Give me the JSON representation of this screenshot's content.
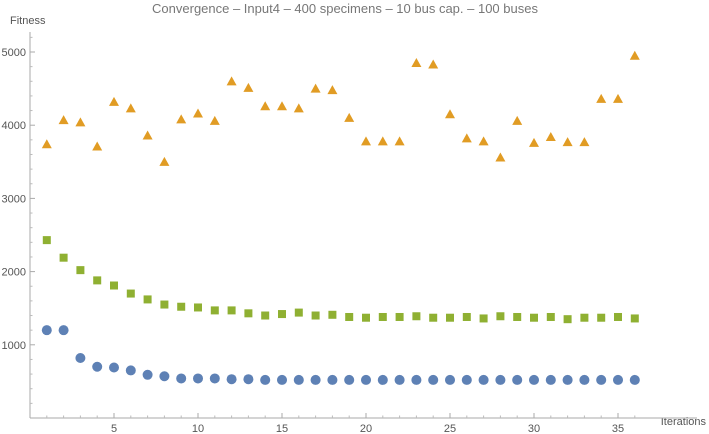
{
  "chart_data": {
    "type": "scatter",
    "title": "Convergence – Input4 – 400 specimens – 10 bus cap. – 100 buses",
    "xlabel": "Iterations",
    "ylabel": "Fitness",
    "xlim": [
      0,
      37
    ],
    "ylim": [
      0,
      5250
    ],
    "xticks": [
      5,
      10,
      15,
      20,
      25,
      30,
      35
    ],
    "xtick_labels": [
      "5",
      "10",
      "15",
      "20",
      "25",
      "30",
      "35"
    ],
    "yticks": [
      1000,
      2000,
      3000,
      4000,
      5000
    ],
    "ytick_labels": [
      "1000",
      "2000",
      "3000",
      "4000",
      "5000"
    ],
    "grid": false,
    "legend": "none",
    "x": [
      1,
      2,
      3,
      4,
      5,
      6,
      7,
      8,
      9,
      10,
      11,
      12,
      13,
      14,
      15,
      16,
      17,
      18,
      19,
      20,
      21,
      22,
      23,
      24,
      25,
      26,
      27,
      28,
      29,
      30,
      31,
      32,
      33,
      34,
      35,
      36
    ],
    "series": [
      {
        "marker": "triangle",
        "color": "#E19C24",
        "values": [
          3740,
          4070,
          4040,
          3710,
          4320,
          4230,
          3860,
          3500,
          4080,
          4160,
          4060,
          4600,
          4510,
          4260,
          4260,
          4230,
          4500,
          4480,
          4100,
          3780,
          3780,
          3780,
          4850,
          4830,
          4150,
          3820,
          3780,
          3560,
          4060,
          3760,
          3840,
          3770,
          3770,
          4360,
          4360,
          4950
        ]
      },
      {
        "marker": "square",
        "color": "#8FB032",
        "values": [
          2430,
          2190,
          2020,
          1880,
          1810,
          1700,
          1620,
          1550,
          1520,
          1510,
          1470,
          1470,
          1430,
          1400,
          1420,
          1440,
          1400,
          1410,
          1380,
          1370,
          1380,
          1380,
          1390,
          1370,
          1370,
          1380,
          1360,
          1390,
          1380,
          1370,
          1380,
          1350,
          1370,
          1370,
          1380,
          1360
        ]
      },
      {
        "marker": "circle",
        "color": "#5E81B5",
        "values": [
          1200,
          1200,
          820,
          700,
          690,
          650,
          590,
          570,
          540,
          540,
          540,
          530,
          530,
          520,
          520,
          520,
          520,
          520,
          520,
          520,
          520,
          520,
          520,
          520,
          520,
          520,
          520,
          520,
          520,
          520,
          520,
          520,
          520,
          520,
          520,
          520
        ]
      }
    ]
  }
}
